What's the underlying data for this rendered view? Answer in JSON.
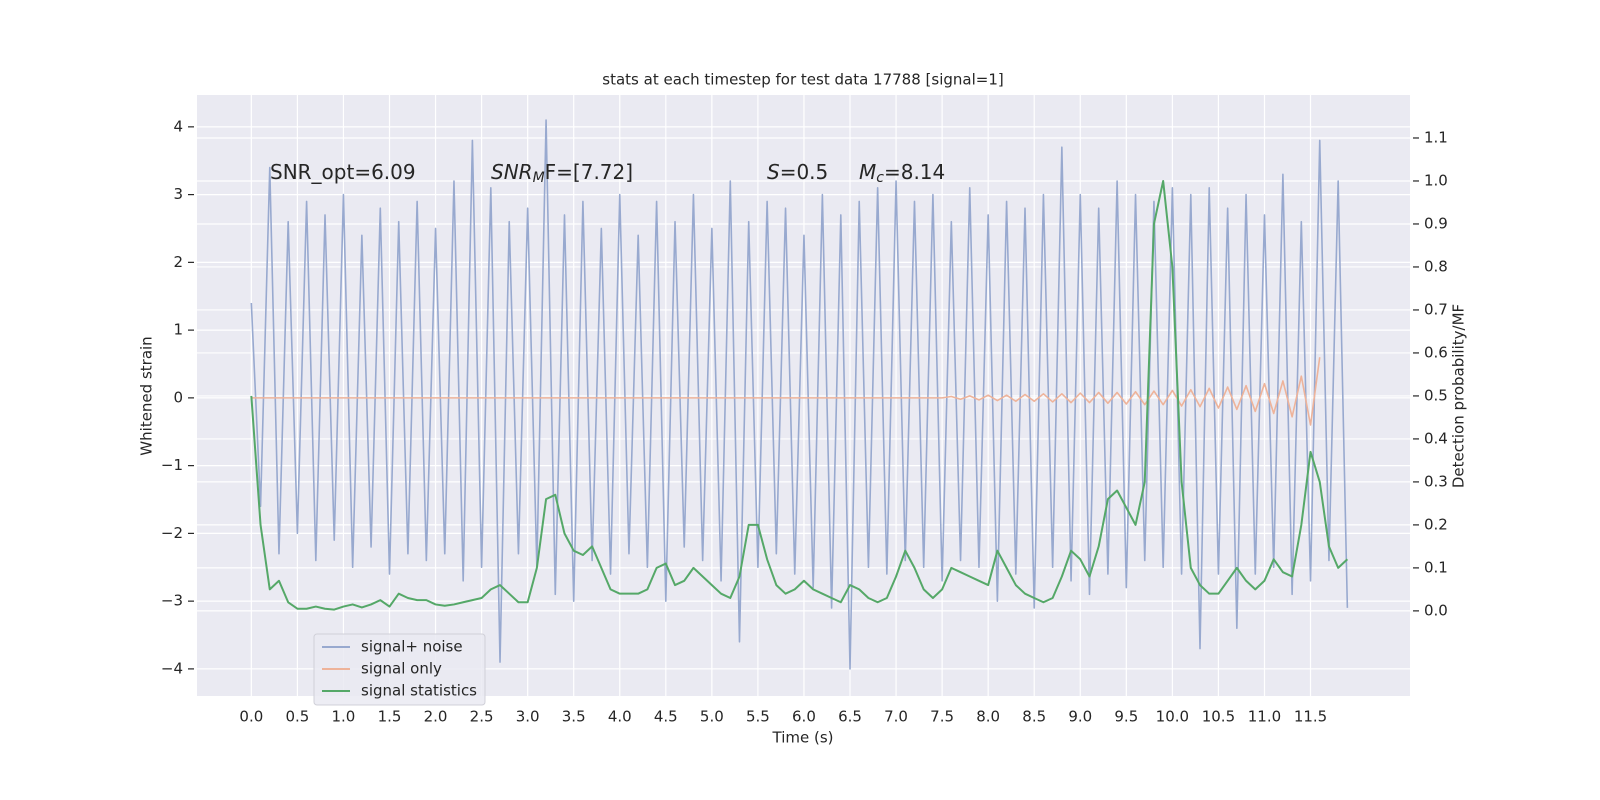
{
  "chart_data": {
    "type": "line",
    "title": "stats at each timestep for test data 17788 [signal=1]",
    "x_label": "Time (s)",
    "y_label": "Whitened strain",
    "y2_label": "Detection probability/MF",
    "annotations": [
      [
        "SNR_opt=6.09"
      ],
      [
        "SNR",
        "M",
        "F=[7.72]"
      ],
      [
        "S",
        "=0.5"
      ],
      [
        "M",
        "c",
        "=8.14"
      ]
    ],
    "grid": true,
    "legend": "lower left",
    "xlim": [
      -0.59,
      12.58
    ],
    "ylim": [
      -4.4,
      4.47
    ],
    "y2lim": [
      -0.198,
      1.2
    ],
    "xticks": [
      {
        "value": 0,
        "label": "0.0"
      },
      {
        "value": 0.5,
        "label": "0.5"
      },
      {
        "value": 1,
        "label": "1.0"
      },
      {
        "value": 1.5,
        "label": "1.5"
      },
      {
        "value": 2,
        "label": "2.0"
      },
      {
        "value": 2.5,
        "label": "2.5"
      },
      {
        "value": 3,
        "label": "3.0"
      },
      {
        "value": 3.5,
        "label": "3.5"
      },
      {
        "value": 4,
        "label": "4.0"
      },
      {
        "value": 4.5,
        "label": "4.5"
      },
      {
        "value": 5,
        "label": "5.0"
      },
      {
        "value": 5.5,
        "label": "5.5"
      },
      {
        "value": 6,
        "label": "6.0"
      },
      {
        "value": 6.5,
        "label": "6.5"
      },
      {
        "value": 7,
        "label": "7.0"
      },
      {
        "value": 7.5,
        "label": "7.5"
      },
      {
        "value": 8,
        "label": "8.0"
      },
      {
        "value": 8.5,
        "label": "8.5"
      },
      {
        "value": 9,
        "label": "9.0"
      },
      {
        "value": 9.5,
        "label": "9.5"
      },
      {
        "value": 10,
        "label": "10.0"
      },
      {
        "value": 10.5,
        "label": "10.5"
      },
      {
        "value": 11,
        "label": "11.0"
      },
      {
        "value": 11.5,
        "label": "11.5"
      }
    ],
    "yticks": [
      {
        "value": -4,
        "label": "−4"
      },
      {
        "value": -3,
        "label": "−3"
      },
      {
        "value": -2,
        "label": "−2"
      },
      {
        "value": -1,
        "label": "−1"
      },
      0,
      1,
      2,
      3,
      4
    ],
    "y2ticks": [
      {
        "value": 0,
        "label": "0.0"
      },
      {
        "value": 0.1,
        "label": "0.1"
      },
      {
        "value": 0.2,
        "label": "0.2"
      },
      {
        "value": 0.3,
        "label": "0.3"
      },
      {
        "value": 0.4,
        "label": "0.4"
      },
      {
        "value": 0.5,
        "label": "0.5"
      },
      {
        "value": 0.6,
        "label": "0.6"
      },
      {
        "value": 0.7,
        "label": "0.7"
      },
      {
        "value": 0.8,
        "label": "0.8"
      },
      {
        "value": 0.9,
        "label": "0.9"
      },
      {
        "value": 1,
        "label": "1.0"
      },
      {
        "value": 1.1,
        "label": "1.1"
      }
    ],
    "x": [
      0,
      0.1,
      0.2,
      0.3,
      0.4,
      0.5,
      0.6,
      0.7,
      0.8,
      0.9,
      1,
      1.1,
      1.2,
      1.3,
      1.4,
      1.5,
      1.6,
      1.7,
      1.8,
      1.9,
      2,
      2.1,
      2.2,
      2.3,
      2.4,
      2.5,
      2.6,
      2.7,
      2.8,
      2.9,
      3,
      3.1,
      3.2,
      3.3,
      3.4,
      3.5,
      3.6,
      3.7,
      3.8,
      3.9,
      4,
      4.1,
      4.2,
      4.3,
      4.4,
      4.5,
      4.6,
      4.7,
      4.8,
      4.9,
      5,
      5.1,
      5.2,
      5.3,
      5.4,
      5.5,
      5.6,
      5.7,
      5.8,
      5.9,
      6,
      6.1,
      6.2,
      6.3,
      6.4,
      6.5,
      6.6,
      6.7,
      6.8,
      6.9,
      7,
      7.1,
      7.2,
      7.3,
      7.4,
      7.5,
      7.6,
      7.7,
      7.8,
      7.9,
      8,
      8.1,
      8.2,
      8.3,
      8.4,
      8.5,
      8.6,
      8.7,
      8.8,
      8.9,
      9,
      9.1,
      9.2,
      9.3,
      9.4,
      9.5,
      9.6,
      9.7,
      9.8,
      9.9,
      10,
      10.1,
      10.2,
      10.3,
      10.4,
      10.5,
      10.6,
      10.7,
      10.8,
      10.9,
      11,
      11.1,
      11.2,
      11.3,
      11.4,
      11.5,
      11.6,
      11.7,
      11.8,
      11.9
    ],
    "series": [
      {
        "name": "signal+ noise",
        "color": "#98a9cf",
        "values": [
          1.4,
          -1.6,
          3.4,
          -2.3,
          2.6,
          -2.0,
          2.9,
          -2.4,
          2.7,
          -2.1,
          3.0,
          -2.5,
          2.4,
          -2.2,
          2.8,
          -2.6,
          2.6,
          -2.3,
          2.9,
          -2.4,
          2.5,
          -2.3,
          3.2,
          -2.7,
          3.8,
          -2.5,
          3.1,
          -3.9,
          2.6,
          -2.3,
          2.8,
          -2.5,
          4.1,
          -2.9,
          2.7,
          -3.0,
          2.9,
          -2.4,
          2.5,
          -2.6,
          3.0,
          -2.3,
          2.4,
          -2.5,
          2.9,
          -3.0,
          2.6,
          -2.2,
          3.0,
          -2.4,
          2.5,
          -2.7,
          3.2,
          -3.6,
          2.6,
          -2.5,
          2.9,
          -2.3,
          2.8,
          -2.6,
          2.4,
          -2.8,
          3.0,
          -3.1,
          2.7,
          -4.0,
          2.9,
          -2.5,
          3.1,
          -2.6,
          3.2,
          -2.4,
          2.9,
          -2.5,
          3.0,
          -2.7,
          2.6,
          -2.4,
          3.1,
          -2.5,
          2.7,
          -3.0,
          2.9,
          -2.6,
          2.8,
          -3.1,
          3.0,
          -2.5,
          3.7,
          -2.7,
          3.0,
          -2.9,
          2.8,
          -2.6,
          3.2,
          -2.8,
          3.0,
          -2.4,
          2.9,
          -2.5,
          3.1,
          -2.6,
          3.0,
          -3.7,
          3.1,
          -2.6,
          2.8,
          -3.4,
          3.0,
          -2.6,
          2.7,
          -2.5,
          3.3,
          -2.9,
          2.6,
          -2.7,
          3.8,
          -2.4,
          3.2,
          -3.1
        ]
      },
      {
        "name": "signal only",
        "color": "#eeb39a",
        "values": [
          0,
          0,
          0,
          0,
          0,
          0,
          0,
          0,
          0,
          0,
          0,
          0,
          0,
          0,
          0,
          0,
          0,
          0,
          0,
          0,
          0,
          0,
          0,
          0,
          0,
          0,
          0,
          0,
          0,
          0,
          0,
          0,
          0,
          0,
          0,
          0,
          0,
          0,
          0,
          0,
          0,
          0,
          0,
          0,
          0,
          0,
          0,
          0,
          0,
          0,
          0,
          0,
          0,
          0,
          0,
          0,
          0,
          0,
          0,
          0,
          0,
          0,
          0,
          0,
          0,
          0,
          0,
          0,
          0,
          0,
          0,
          0,
          0,
          0,
          0,
          0,
          0.02,
          -0.02,
          0.03,
          -0.03,
          0.04,
          -0.04,
          0.04,
          -0.05,
          0.05,
          -0.05,
          0.06,
          -0.06,
          0.06,
          -0.07,
          0.07,
          -0.07,
          0.08,
          -0.08,
          0.08,
          -0.09,
          0.09,
          -0.1,
          0.1,
          -0.1,
          0.11,
          -0.12,
          0.12,
          -0.13,
          0.14,
          -0.15,
          0.16,
          -0.17,
          0.18,
          -0.2,
          0.21,
          -0.23,
          0.25,
          -0.28,
          0.32,
          -0.4,
          0.6,
          null,
          null,
          null
        ]
      },
      {
        "name": "signal statistics",
        "color": "#55a868",
        "axis": "y2",
        "values": [
          0.5,
          0.2,
          0.05,
          0.07,
          0.02,
          0.005,
          0.005,
          0.01,
          0.005,
          0.003,
          0.01,
          0.015,
          0.008,
          0.015,
          0.025,
          0.01,
          0.04,
          0.03,
          0.025,
          0.025,
          0.015,
          0.012,
          0.015,
          0.02,
          0.025,
          0.03,
          0.05,
          0.06,
          0.04,
          0.02,
          0.02,
          0.1,
          0.26,
          0.27,
          0.18,
          0.14,
          0.13,
          0.15,
          0.1,
          0.05,
          0.04,
          0.04,
          0.04,
          0.05,
          0.1,
          0.11,
          0.06,
          0.07,
          0.1,
          0.08,
          0.06,
          0.04,
          0.03,
          0.08,
          0.2,
          0.2,
          0.12,
          0.06,
          0.04,
          0.05,
          0.07,
          0.05,
          0.04,
          0.03,
          0.02,
          0.06,
          0.05,
          0.03,
          0.02,
          0.03,
          0.08,
          0.14,
          0.1,
          0.05,
          0.03,
          0.05,
          0.1,
          0.09,
          0.08,
          0.07,
          0.06,
          0.14,
          0.1,
          0.06,
          0.04,
          0.03,
          0.02,
          0.03,
          0.08,
          0.14,
          0.12,
          0.08,
          0.15,
          0.26,
          0.28,
          0.24,
          0.2,
          0.3,
          0.9,
          1.0,
          0.8,
          0.3,
          0.1,
          0.06,
          0.04,
          0.04,
          0.07,
          0.1,
          0.07,
          0.05,
          0.07,
          0.12,
          0.09,
          0.08,
          0.2,
          0.37,
          0.3,
          0.15,
          0.1,
          0.12
        ]
      }
    ]
  }
}
